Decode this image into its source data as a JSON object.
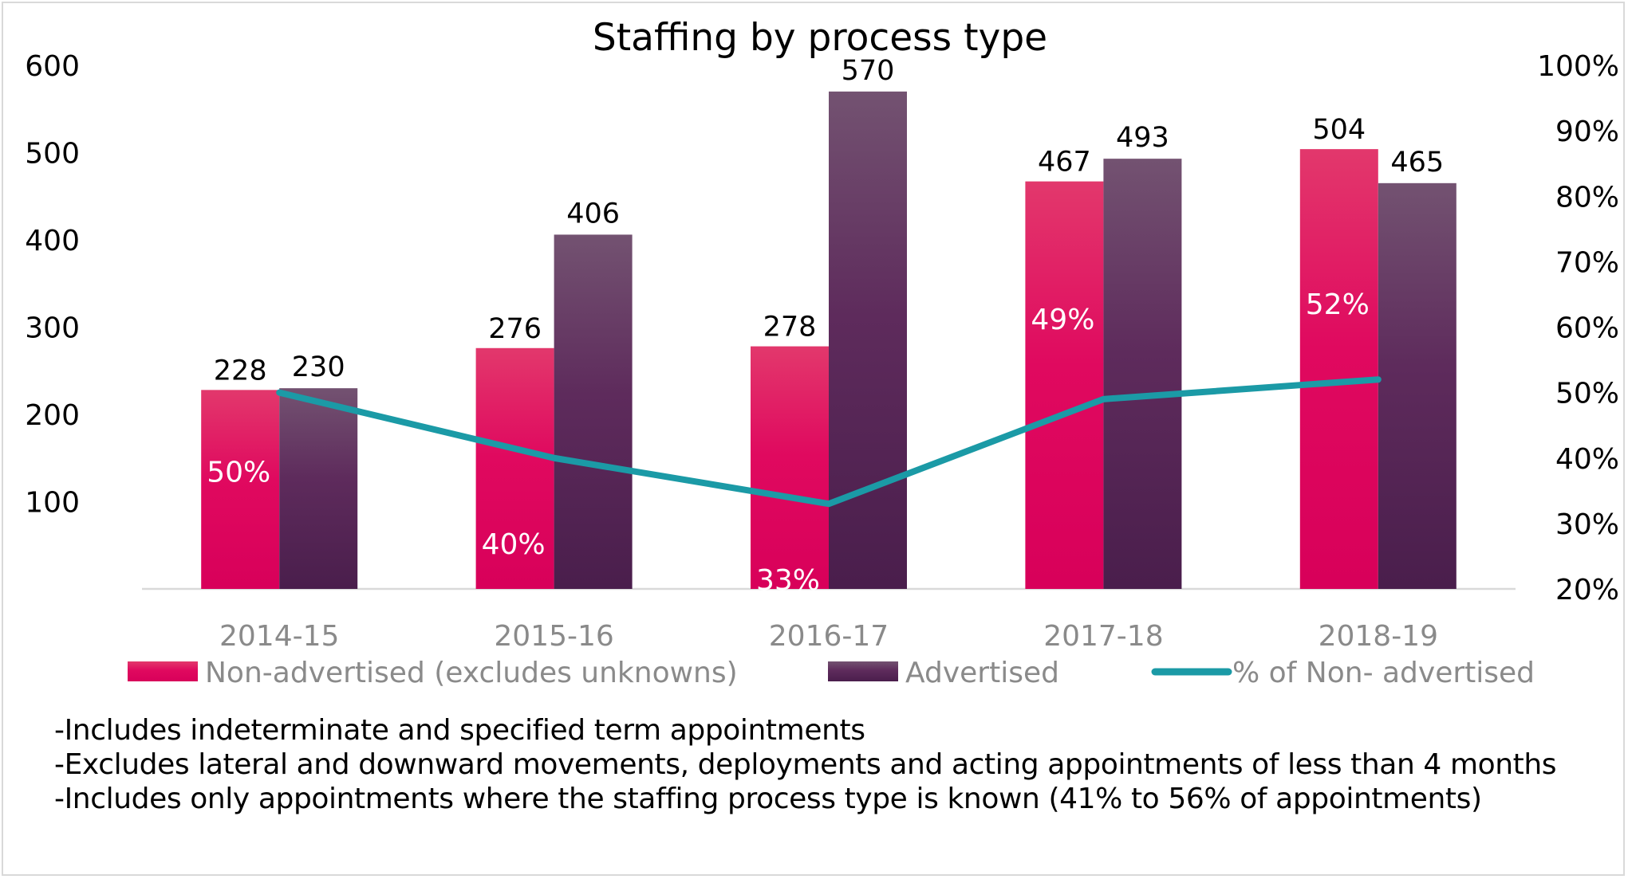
{
  "chart_data": {
    "type": "bar",
    "title": "Staffing by process type",
    "categories": [
      "2014-15",
      "2015-16",
      "2016-17",
      "2017-18",
      "2018-19"
    ],
    "series": [
      {
        "name": "Non-advertised (excludes unknowns)",
        "type": "bar",
        "axis": "left",
        "color": "#e0115f",
        "values": [
          228,
          276,
          278,
          467,
          504
        ]
      },
      {
        "name": "Advertised",
        "type": "bar",
        "axis": "left",
        "color": "#5b2a59",
        "values": [
          230,
          406,
          570,
          493,
          465
        ]
      },
      {
        "name": "% of Non- advertised",
        "type": "line",
        "axis": "right",
        "color": "#1b9aa6",
        "values": [
          50,
          40,
          33,
          49,
          52
        ]
      }
    ],
    "pct_labels": [
      "50%",
      "40%",
      "33%",
      "49%",
      "52%"
    ],
    "bar_value_labels": {
      "non_advertised": [
        "228",
        "276",
        "278",
        "467",
        "504"
      ],
      "advertised": [
        "230",
        "406",
        "570",
        "493",
        "465"
      ]
    },
    "y_left": {
      "ticks": [
        "100",
        "200",
        "300",
        "400",
        "500",
        "600"
      ],
      "range": [
        0,
        600
      ]
    },
    "y_right": {
      "ticks": [
        "20%",
        "30%",
        "40%",
        "50%",
        "60%",
        "70%",
        "80%",
        "90%",
        "100%"
      ],
      "range": [
        20,
        100
      ]
    },
    "legend": {
      "position": "bottom"
    }
  },
  "notes": [
    "-Includes indeterminate and specified term appointments",
    "-Excludes lateral and downward movements, deployments and acting appointments  of less than 4 months",
    "-Includes only appointments where the staffing process type is known (41% to 56% of appointments)"
  ]
}
